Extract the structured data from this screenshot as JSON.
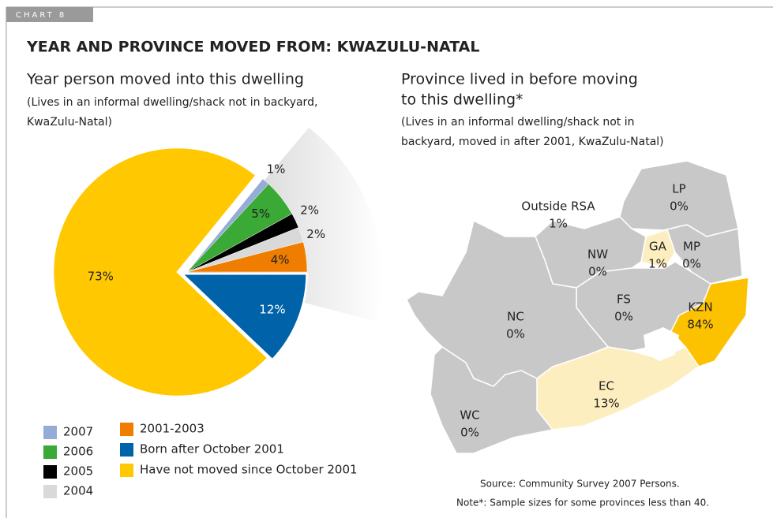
{
  "label": "CHART 8",
  "title": "YEAR AND PROVINCE MOVED FROM: KWAZULU-NATAL",
  "chart_data": [
    {
      "type": "pie",
      "title": [
        "Year person moved into this dwelling"
      ],
      "subtitle": [
        "(Lives in an informal dwelling/shack not in backyard,",
        "KwaZulu-Natal)"
      ],
      "categories": [
        "2007",
        "2006",
        "2005",
        "2004",
        "2001-2003",
        "Born after October 2001",
        "Have not moved since October 2001"
      ],
      "values": [
        1,
        5,
        2,
        2,
        4,
        12,
        73
      ],
      "value_labels": [
        "1%",
        "5%",
        "2%",
        "2%",
        "4%",
        "12%",
        "73%"
      ],
      "colors": [
        "#94acd6",
        "#3aa935",
        "#000000",
        "#d9d9d9",
        "#ee7d00",
        "#0062a8",
        "#ffc800"
      ]
    },
    {
      "type": "map",
      "title": [
        "Province lived in before moving",
        "to this dwelling*"
      ],
      "subtitle": [
        "(Lives in an informal dwelling/shack not in",
        "backyard, moved in after 2001, KwaZulu-Natal)"
      ],
      "regions": [
        "Outside RSA",
        "LP",
        "GA",
        "MP",
        "NW",
        "FS",
        "KZN",
        "NC",
        "EC",
        "WC"
      ],
      "values": [
        1,
        0,
        1,
        0,
        0,
        0,
        84,
        0,
        13,
        0
      ],
      "value_labels": [
        "1%",
        "0%",
        "1%",
        "0%",
        "0%",
        "0%",
        "84%",
        "0%",
        "13%",
        "0%"
      ],
      "colors": [
        null,
        "#c8c8c8",
        "#fdeec0",
        "#c8c8c8",
        "#c8c8c8",
        "#c8c8c8",
        "#fcc200",
        "#c8c8c8",
        "#fdeec0",
        "#c8c8c8"
      ]
    }
  ],
  "source": "Source: Community Survey 2007 Persons.",
  "note": "Note*: Sample sizes for some provinces less than 40."
}
